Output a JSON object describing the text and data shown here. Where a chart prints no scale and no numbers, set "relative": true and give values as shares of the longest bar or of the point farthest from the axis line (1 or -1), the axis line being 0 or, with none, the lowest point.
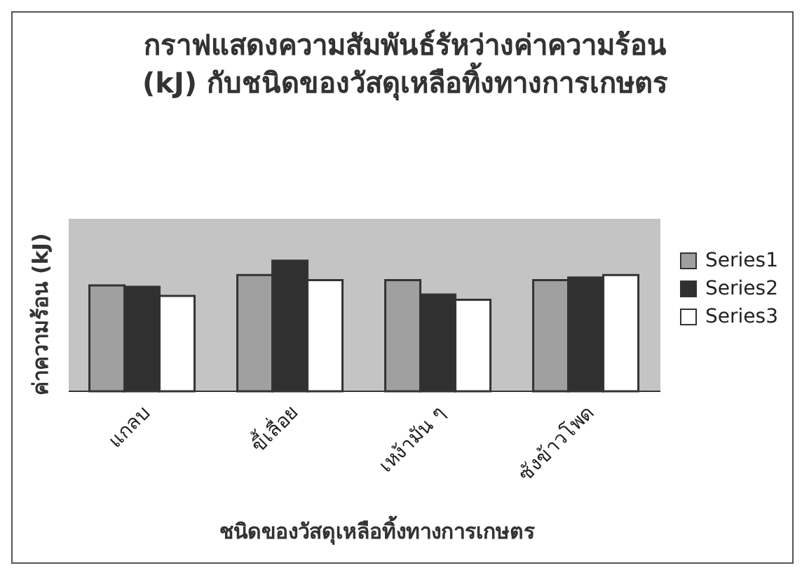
{
  "chart_data": {
    "type": "bar",
    "title": "กราฟแสดงความสัมพันธ์รัหว่างค่าความร้อน  (kJ) กับชนิดของวัสดุเหลือทิ้งทางการเกษตร",
    "xlabel": "ชนิดของวัสดุเหลือทิ้งทางการเกษตร",
    "ylabel": "ค่าความร้อน  (kJ)",
    "relative": true,
    "legend": "right",
    "categories": [
      "แกลบ",
      "ขี้เลื่อย",
      "เหง้ามัน ๆ",
      "ซังข้าวโพด"
    ],
    "series": [
      {
        "name": "Series1",
        "color": "#a0a0a0",
        "values": [
          0.81,
          0.89,
          0.85,
          0.85
        ]
      },
      {
        "name": "Series2",
        "color": "#303030",
        "values": [
          0.8,
          1,
          0.74,
          0.87
        ]
      },
      {
        "name": "Series3",
        "color": "#ffffff",
        "values": [
          0.73,
          0.85,
          0.7,
          0.89
        ]
      }
    ]
  }
}
